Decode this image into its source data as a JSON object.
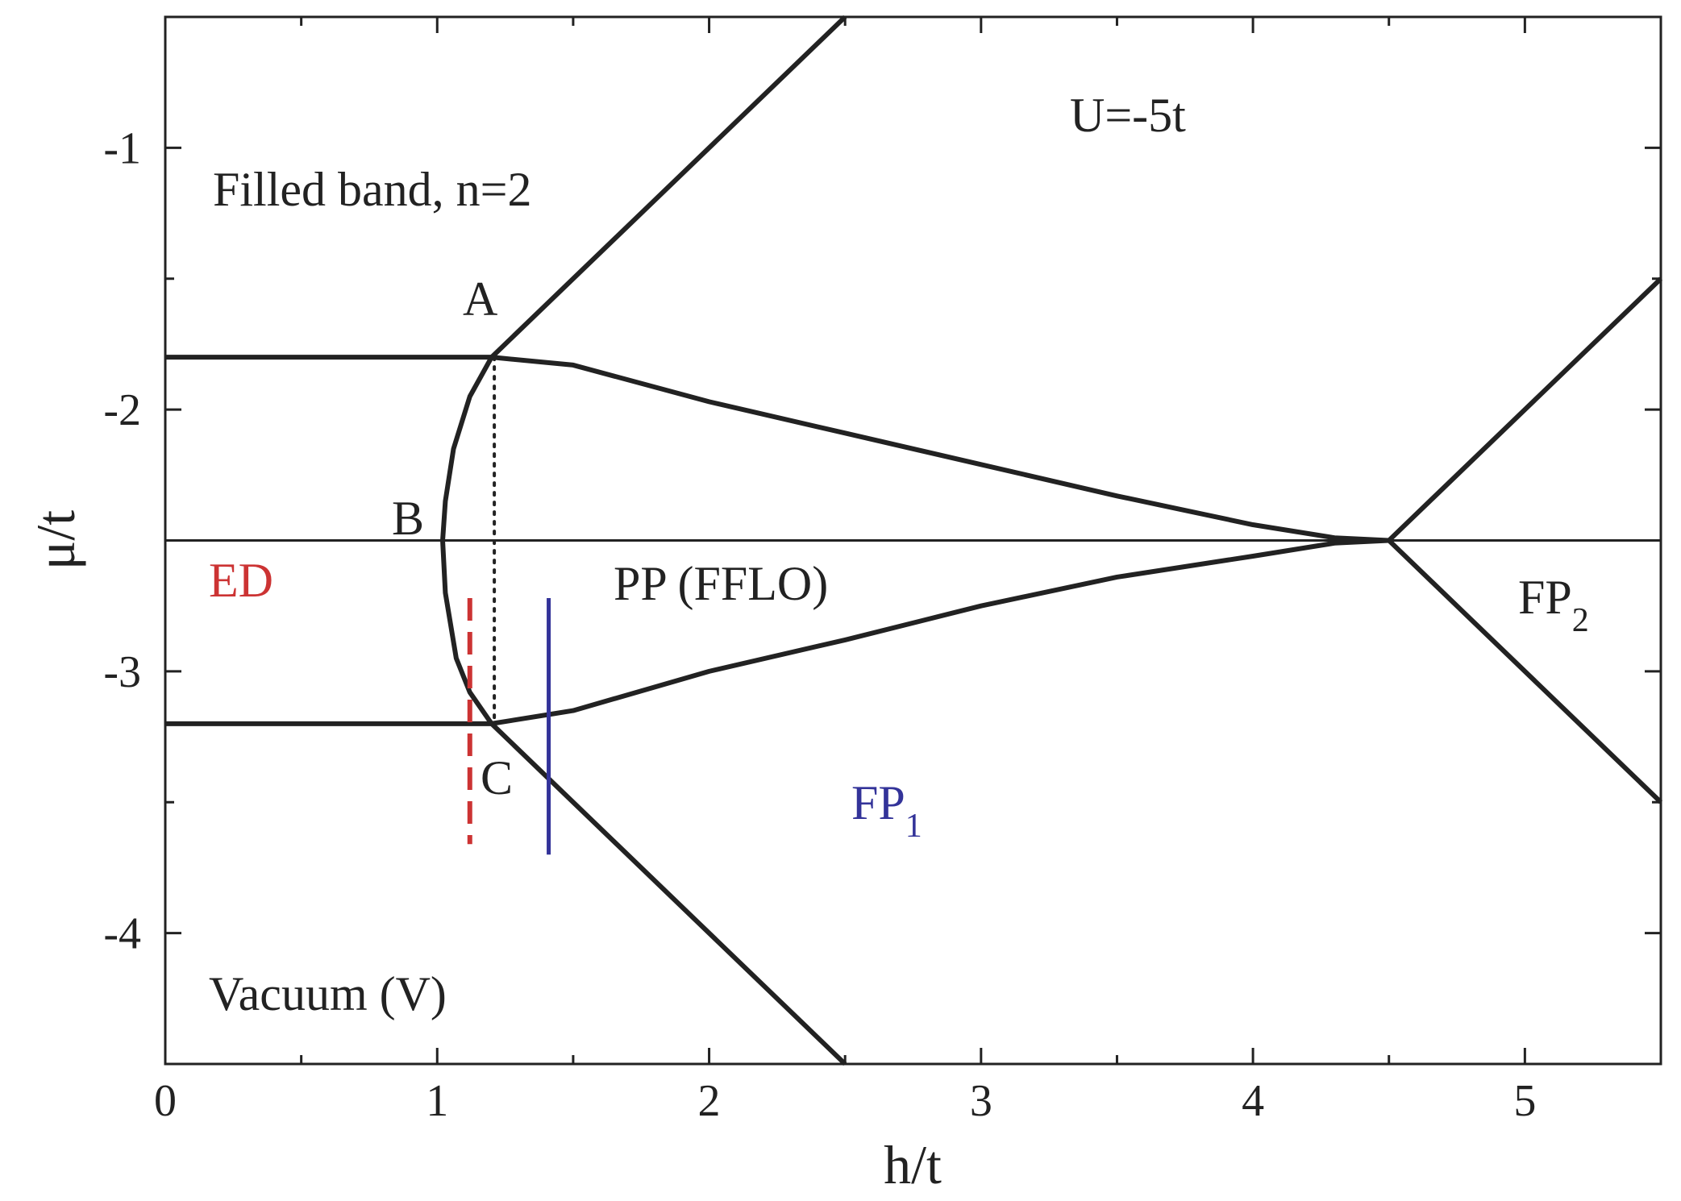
{
  "chart_data": {
    "type": "line",
    "x_label": "h/t",
    "y_label": "μ/t",
    "xlim": [
      0,
      5.5
    ],
    "ylim": [
      -4.5,
      -0.5
    ],
    "xticks": [
      0,
      1,
      2,
      3,
      4,
      5
    ],
    "yticks": [
      -1,
      -2,
      -3,
      -4
    ],
    "xminorticks": [
      0.5,
      1.5,
      2.5,
      3.5,
      4.5
    ],
    "yminorticks": [
      -1.5,
      -2.5,
      -3.5
    ],
    "lines": [
      {
        "x": [
          0,
          1.2
        ],
        "y": [
          -1.8,
          -1.8
        ],
        "color": "#222222",
        "style": "thick"
      },
      {
        "x": [
          0,
          1.2
        ],
        "y": [
          -3.2,
          -3.2
        ],
        "color": "#222222",
        "style": "thick"
      },
      {
        "x": [
          1.2,
          2.5
        ],
        "y": [
          -1.8,
          -0.5
        ],
        "color": "#222222",
        "style": "thick"
      },
      {
        "x": [
          1.2,
          2.5
        ],
        "y": [
          -3.2,
          -4.5
        ],
        "color": "#222222",
        "style": "thick"
      },
      {
        "x": [
          4.5,
          5.5
        ],
        "y": [
          -2.5,
          -1.5
        ],
        "color": "#222222",
        "style": "thick"
      },
      {
        "x": [
          4.5,
          5.5
        ],
        "y": [
          -2.5,
          -3.5
        ],
        "color": "#222222",
        "style": "thick"
      },
      {
        "x": [
          0,
          5.5
        ],
        "y": [
          -2.5,
          -2.5
        ],
        "color": "#222222",
        "style": "thin"
      },
      {
        "x": [
          1.2,
          1.5,
          2,
          2.5,
          3,
          3.5,
          4,
          4.3,
          4.5
        ],
        "y": [
          -1.8,
          -1.83,
          -1.97,
          -2.09,
          -2.21,
          -2.33,
          -2.44,
          -2.49,
          -2.5
        ],
        "color": "#222222",
        "style": "thick"
      },
      {
        "x": [
          1.2,
          1.5,
          2,
          2.5,
          3,
          3.5,
          4,
          4.3,
          4.5
        ],
        "y": [
          -3.2,
          -3.15,
          -3.0,
          -2.88,
          -2.75,
          -2.64,
          -2.56,
          -2.51,
          -2.5
        ],
        "color": "#222222",
        "style": "thick"
      },
      {
        "x": [
          1.2,
          1.12,
          1.06,
          1.03,
          1.02,
          1.03,
          1.07,
          1.12,
          1.2
        ],
        "y": [
          -1.8,
          -1.95,
          -2.15,
          -2.35,
          -2.5,
          -2.7,
          -2.95,
          -3.08,
          -3.2
        ],
        "color": "#222222",
        "style": "thick"
      },
      {
        "x": [
          1.21,
          1.21
        ],
        "y": [
          -1.8,
          -3.2
        ],
        "color": "#222222",
        "style": "dotted"
      },
      {
        "x": [
          1.12,
          1.12
        ],
        "y": [
          -2.72,
          -3.66
        ],
        "color": "#cc3333",
        "style": "dashed"
      },
      {
        "x": [
          1.41,
          1.41
        ],
        "y": [
          -2.72,
          -3.7
        ],
        "color": "#333399",
        "style": "solid"
      }
    ],
    "annotations": [
      {
        "text": "Filled band, n=2",
        "color": "#222222"
      },
      {
        "text": "U=-5t",
        "color": "#222222"
      },
      {
        "text": "A",
        "color": "#222222"
      },
      {
        "text": "B",
        "color": "#222222"
      },
      {
        "text": "C",
        "color": "#222222"
      },
      {
        "text": "ED",
        "color": "#cc3333"
      },
      {
        "text": "PP (FFLO)",
        "color": "#222222"
      },
      {
        "text": "FP",
        "sub": "1",
        "color": "#333399"
      },
      {
        "text": "FP",
        "sub": "2",
        "color": "#222222"
      },
      {
        "text": "Vacuum (V)",
        "color": "#222222"
      }
    ]
  }
}
